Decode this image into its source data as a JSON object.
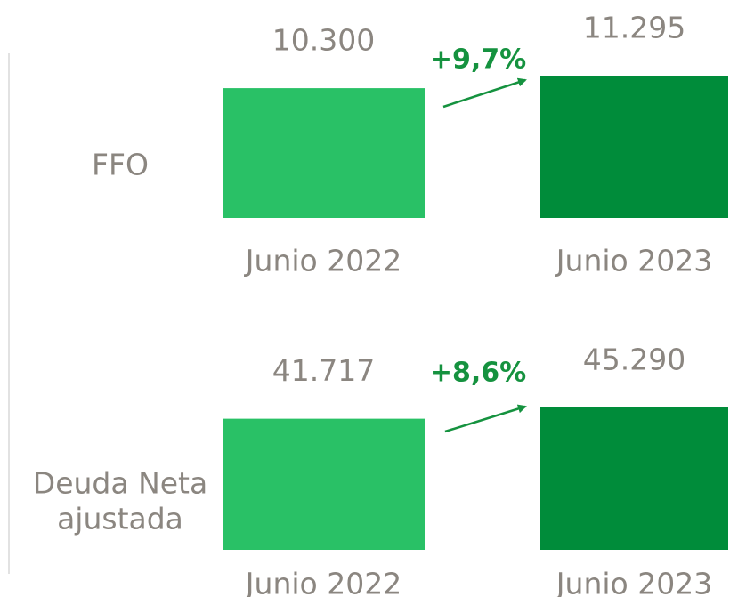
{
  "chart_data": [
    {
      "type": "bar",
      "label": [
        "FFO"
      ],
      "categories": [
        "Junio 2022",
        "Junio 2023"
      ],
      "values": [
        10300,
        11295
      ],
      "value_labels": [
        "10.300",
        "11.295"
      ],
      "colors": [
        "#29c166",
        "#008c3a"
      ],
      "annotation": "+9,7%"
    },
    {
      "type": "bar",
      "label": [
        "Deuda Neta",
        "ajustada"
      ],
      "categories": [
        "Junio 2022",
        "Junio 2023"
      ],
      "values": [
        41717,
        45290
      ],
      "value_labels": [
        "41.717",
        "45.290"
      ],
      "colors": [
        "#29c166",
        "#008c3a"
      ],
      "annotation": "+8,6%"
    }
  ]
}
